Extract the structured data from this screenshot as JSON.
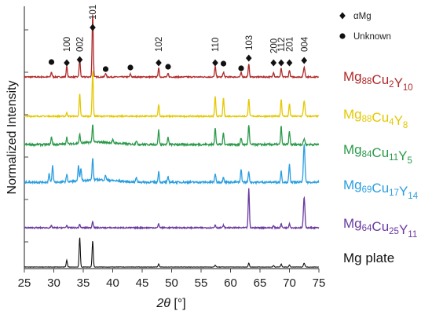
{
  "chart_data": {
    "type": "line",
    "xlabel_italic": "2θ",
    "xlabel_unit": " [°]",
    "ylabel": "Normalized Intensity",
    "xlim": [
      25,
      75
    ],
    "xticks": [
      25,
      30,
      35,
      40,
      45,
      50,
      55,
      60,
      65,
      70,
      75
    ],
    "legend": [
      {
        "marker": "diamond",
        "label": "αMg"
      },
      {
        "marker": "circle",
        "label": "Unknown"
      }
    ],
    "peak_labels": [
      {
        "x": 32.2,
        "label": "100"
      },
      {
        "x": 34.4,
        "label": "002"
      },
      {
        "x": 36.6,
        "label": "101"
      },
      {
        "x": 47.8,
        "label": "102"
      },
      {
        "x": 57.4,
        "label": "110"
      },
      {
        "x": 63.1,
        "label": "103"
      },
      {
        "x": 67.3,
        "label": "200"
      },
      {
        "x": 68.6,
        "label": "112"
      },
      {
        "x": 70.0,
        "label": "201"
      },
      {
        "x": 72.5,
        "label": "004"
      }
    ],
    "markers": [
      {
        "x": 29.6,
        "type": "circle"
      },
      {
        "x": 32.2,
        "type": "diamond"
      },
      {
        "x": 34.4,
        "type": "diamond"
      },
      {
        "x": 36.6,
        "type": "diamond"
      },
      {
        "x": 38.8,
        "type": "circle"
      },
      {
        "x": 43.0,
        "type": "circle"
      },
      {
        "x": 47.8,
        "type": "diamond"
      },
      {
        "x": 49.4,
        "type": "circle"
      },
      {
        "x": 57.4,
        "type": "diamond"
      },
      {
        "x": 58.8,
        "type": "circle"
      },
      {
        "x": 61.8,
        "type": "circle"
      },
      {
        "x": 63.1,
        "type": "diamond"
      },
      {
        "x": 67.3,
        "type": "diamond"
      },
      {
        "x": 68.6,
        "type": "diamond"
      },
      {
        "x": 70.0,
        "type": "diamond"
      },
      {
        "x": 72.5,
        "type": "diamond"
      }
    ],
    "series": [
      {
        "name": "Mg88Cu2Y10",
        "parts": [
          [
            "Mg",
            "88"
          ],
          [
            "Cu",
            "2"
          ],
          [
            "Y",
            "10"
          ]
        ],
        "color": "#b02a2a",
        "peaks": [
          [
            29.6,
            0.1
          ],
          [
            32.2,
            0.22
          ],
          [
            34.4,
            0.38
          ],
          [
            36.6,
            1.3
          ],
          [
            38.8,
            0.08
          ],
          [
            43.0,
            0.06
          ],
          [
            47.8,
            0.18
          ],
          [
            49.4,
            0.07
          ],
          [
            57.4,
            0.22
          ],
          [
            58.8,
            0.1
          ],
          [
            61.8,
            0.09
          ],
          [
            63.1,
            0.26
          ],
          [
            67.3,
            0.1
          ],
          [
            68.6,
            0.18
          ],
          [
            70.0,
            0.14
          ],
          [
            72.5,
            0.2
          ]
        ]
      },
      {
        "name": "Mg88Cu4Y8",
        "parts": [
          [
            "Mg",
            "88"
          ],
          [
            "Cu",
            "4"
          ],
          [
            "Y",
            "8"
          ]
        ],
        "color": "#e4c800",
        "peaks": [
          [
            32.2,
            0.07
          ],
          [
            34.4,
            0.46
          ],
          [
            36.6,
            0.95
          ],
          [
            47.8,
            0.24
          ],
          [
            57.4,
            0.4
          ],
          [
            58.8,
            0.38
          ],
          [
            63.1,
            0.36
          ],
          [
            68.6,
            0.35
          ],
          [
            70.0,
            0.26
          ],
          [
            72.5,
            0.32
          ]
        ]
      },
      {
        "name": "Mg84Cu11Y5",
        "parts": [
          [
            "Mg",
            "84"
          ],
          [
            "Cu",
            "11"
          ],
          [
            "Y",
            "5"
          ]
        ],
        "color": "#2a9a4a",
        "peaks": [
          [
            29.6,
            0.15
          ],
          [
            32.2,
            0.14
          ],
          [
            34.4,
            0.18
          ],
          [
            36.6,
            0.36
          ],
          [
            40.0,
            0.06
          ],
          [
            44.0,
            0.08
          ],
          [
            47.8,
            0.3
          ],
          [
            49.4,
            0.14
          ],
          [
            57.4,
            0.35
          ],
          [
            58.8,
            0.25
          ],
          [
            61.8,
            0.14
          ],
          [
            63.1,
            0.4
          ],
          [
            68.6,
            0.37
          ],
          [
            70.0,
            0.27
          ],
          [
            72.5,
            0.12
          ]
        ]
      },
      {
        "name": "Mg69Cu17Y14",
        "parts": [
          [
            "Mg",
            "69"
          ],
          [
            "Cu",
            "17"
          ],
          [
            "Y",
            "14"
          ]
        ],
        "color": "#2a9ee0",
        "peaks": [
          [
            29.2,
            0.18
          ],
          [
            29.8,
            0.34
          ],
          [
            32.2,
            0.15
          ],
          [
            34.2,
            0.32
          ],
          [
            34.6,
            0.26
          ],
          [
            36.6,
            0.45
          ],
          [
            38.8,
            0.1
          ],
          [
            44.0,
            0.09
          ],
          [
            47.8,
            0.22
          ],
          [
            49.4,
            0.1
          ],
          [
            57.4,
            0.18
          ],
          [
            58.8,
            0.12
          ],
          [
            61.8,
            0.26
          ],
          [
            63.1,
            0.22
          ],
          [
            68.6,
            0.23
          ],
          [
            70.0,
            0.36
          ],
          [
            72.5,
            0.78
          ]
        ]
      },
      {
        "name": "Mg64Cu25Y11",
        "parts": [
          [
            "Mg",
            "64"
          ],
          [
            "Cu",
            "25"
          ],
          [
            "Y",
            "11"
          ]
        ],
        "color": "#6a3aa0",
        "peaks": [
          [
            29.6,
            0.04
          ],
          [
            32.2,
            0.05
          ],
          [
            34.4,
            0.07
          ],
          [
            36.6,
            0.14
          ],
          [
            47.8,
            0.08
          ],
          [
            57.4,
            0.06
          ],
          [
            58.8,
            0.05
          ],
          [
            63.1,
            0.8
          ],
          [
            67.3,
            0.04
          ],
          [
            68.6,
            0.08
          ],
          [
            70.0,
            0.09
          ],
          [
            72.5,
            0.62
          ]
        ]
      },
      {
        "name": "Mg plate",
        "parts": [
          [
            "Mg plate",
            ""
          ]
        ],
        "color": "#111111",
        "peaks": [
          [
            32.2,
            0.14
          ],
          [
            34.4,
            0.61
          ],
          [
            36.6,
            0.54
          ],
          [
            47.8,
            0.06
          ],
          [
            57.4,
            0.04
          ],
          [
            63.1,
            0.08
          ],
          [
            67.3,
            0.03
          ],
          [
            68.6,
            0.06
          ],
          [
            70.0,
            0.04
          ],
          [
            72.5,
            0.08
          ]
        ]
      }
    ]
  }
}
